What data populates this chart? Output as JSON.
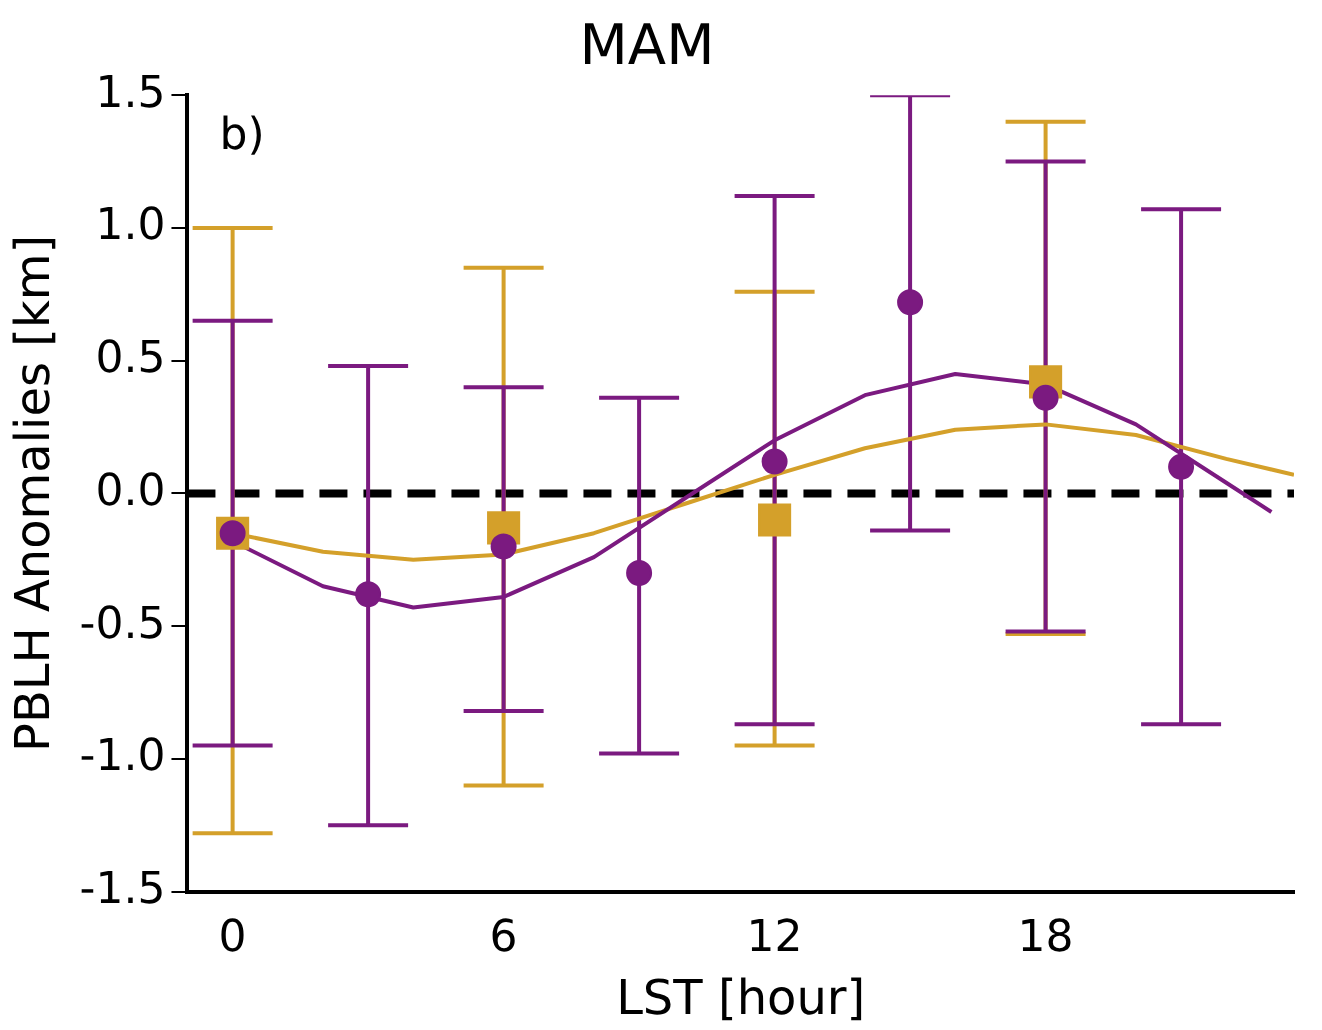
{
  "chart_data": {
    "type": "scatter",
    "title": "MAM",
    "xlabel": "LST [hour]",
    "ylabel": "PBLH Anomalies [km]",
    "annotations": [
      "b)"
    ],
    "xlim": [
      -1,
      23.5
    ],
    "xticks": [
      0,
      6,
      12,
      18
    ],
    "ylim": [
      -1.5,
      1.5
    ],
    "yticks": [
      {
        "value": -1.5,
        "label": "-1.5"
      },
      {
        "value": -1,
        "label": "-1.0"
      },
      {
        "value": -0.5,
        "label": "-0.5"
      },
      {
        "value": 0,
        "label": "0.0"
      },
      {
        "value": 0.5,
        "label": "0.5"
      },
      {
        "value": 1,
        "label": "1.0"
      },
      {
        "value": 1.5,
        "label": "1.5"
      }
    ],
    "grid": false,
    "legend": false,
    "ref_lines": [
      {
        "axis": "y",
        "value": 0,
        "color": "#000000",
        "line_style": "dashed"
      }
    ],
    "series": [
      {
        "type": "line",
        "color": "#d4a02a",
        "marker": "none",
        "x": [
          0,
          2,
          4,
          6,
          8,
          10,
          12,
          14,
          16,
          18,
          20,
          22,
          23.5
        ],
        "values": [
          -0.15,
          -0.22,
          -0.25,
          -0.23,
          -0.15,
          -0.04,
          0.07,
          0.17,
          0.24,
          0.26,
          0.22,
          0.13,
          0.07
        ]
      },
      {
        "type": "line",
        "color": "#7b1a80",
        "marker": "none",
        "x": [
          0,
          2,
          4,
          6,
          8,
          10,
          12,
          14,
          16,
          18,
          20,
          22,
          23
        ],
        "values": [
          -0.18,
          -0.35,
          -0.43,
          -0.39,
          -0.24,
          -0.02,
          0.2,
          0.37,
          0.45,
          0.41,
          0.26,
          0.04,
          -0.07
        ]
      },
      {
        "type": "scatter",
        "color": "#d4a02a",
        "marker": "square",
        "x": [
          0,
          6,
          12,
          18
        ],
        "values": [
          -0.15,
          -0.13,
          -0.1,
          0.42
        ],
        "errors": [
          [
            -1.28,
            1.0
          ],
          [
            -1.1,
            0.85
          ],
          [
            -0.95,
            0.76
          ],
          [
            -0.53,
            1.4
          ]
        ]
      },
      {
        "type": "scatter",
        "color": "#7b1a80",
        "marker": "circle",
        "x": [
          0,
          3,
          6,
          9,
          12,
          15,
          18,
          21
        ],
        "values": [
          -0.15,
          -0.38,
          -0.2,
          -0.3,
          0.12,
          0.72,
          0.36,
          0.1
        ],
        "errors": [
          [
            -0.95,
            0.65
          ],
          [
            -1.25,
            0.48
          ],
          [
            -0.82,
            0.4
          ],
          [
            -0.98,
            0.36
          ],
          [
            -0.87,
            1.12
          ],
          [
            -0.14,
            1.5
          ],
          [
            -0.52,
            1.25
          ],
          [
            -0.87,
            1.07
          ]
        ]
      }
    ]
  }
}
